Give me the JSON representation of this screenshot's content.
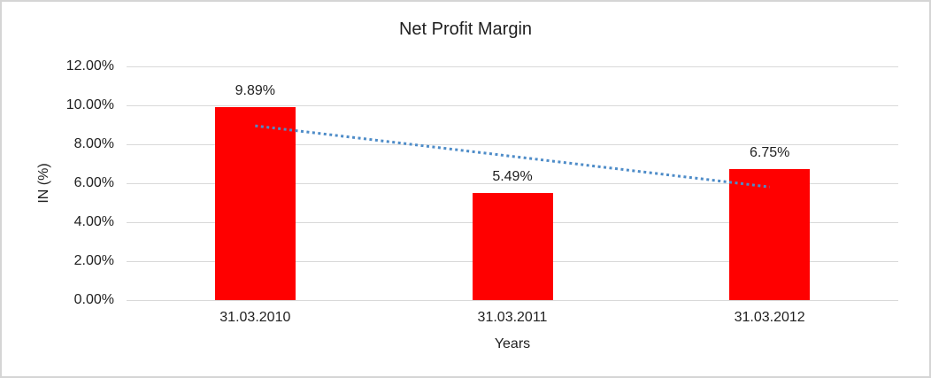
{
  "chart_data": {
    "type": "bar",
    "title": "Net Profit Margin",
    "xlabel": "Years",
    "ylabel": "IN (%)",
    "categories": [
      "31.03.2010",
      "31.03.2011",
      "31.03.2012"
    ],
    "values": [
      9.89,
      5.49,
      6.75
    ],
    "data_labels": [
      "9.89%",
      "5.49%",
      "6.75%"
    ],
    "ylim": [
      0,
      12
    ],
    "ytick_step": 2,
    "ytick_labels": [
      "0.00%",
      "2.00%",
      "4.00%",
      "6.00%",
      "8.00%",
      "10.00%",
      "12.00%"
    ],
    "grid": true,
    "legend": "none",
    "trendline": {
      "type": "linear",
      "style": "dotted",
      "start_value": 8.95,
      "end_value": 5.81
    },
    "colors": {
      "bar": "#FF0000",
      "trendline": "#4E8CC8",
      "gridline": "#D9D9D9",
      "border": "#D5D5D5",
      "text": "#262626",
      "background": "#FFFFFF"
    }
  }
}
